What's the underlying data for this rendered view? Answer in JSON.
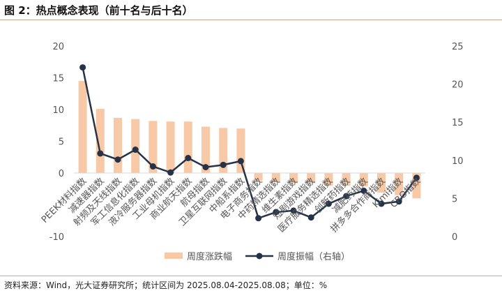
{
  "title": "图 2：热点概念表现（前十名与后十名）",
  "source": "资料来源：Wind，光大证券研究所；统计区间为 2025.08.04-2025.08.08；单位：%",
  "chart_data": {
    "type": "bar+line",
    "categories": [
      "PEEK材料指数",
      "减速器指数",
      "射频及天线指数",
      "军工信息化指数",
      "液冷服务器指数",
      "工业母机指数",
      "商业航天指数",
      "航母指数",
      "卫星互联网指数",
      "中船系指数",
      "电子商务指数",
      "中药精选指数",
      "维生素指数",
      "短剧游戏指数",
      "医疗服务精选指数",
      "创新药指数",
      "减肥药指数",
      "拼多多合作商指数",
      "Kimi指数",
      "CRO指数"
    ],
    "series": [
      {
        "name": "周度涨跌幅",
        "type": "bar",
        "axis": "left",
        "color": "#f8c9a6",
        "values": [
          14.5,
          10.1,
          8.7,
          8.5,
          8.2,
          8.1,
          8.1,
          7.3,
          7.1,
          7.0,
          -1.2,
          -1.4,
          -1.6,
          -1.6,
          -2.0,
          -2.0,
          -2.1,
          -3.1,
          -3.5,
          -4.0
        ]
      },
      {
        "name": "周度振幅（右轴）",
        "type": "line",
        "axis": "right",
        "color": "#253247",
        "values": [
          22.2,
          10.9,
          10.1,
          11.4,
          9.2,
          8.4,
          10.3,
          9.1,
          9.4,
          9.9,
          2.4,
          3.2,
          3.4,
          2.5,
          4.3,
          5.3,
          6.0,
          4.3,
          4.6,
          7.7
        ]
      }
    ],
    "left_axis": {
      "ylim": [
        -10,
        20
      ],
      "ticks": [
        -10,
        0,
        5,
        10,
        15,
        20
      ]
    },
    "right_axis": {
      "ylim": [
        0,
        25
      ],
      "ticks": [
        0,
        5,
        10,
        15,
        20,
        25
      ]
    },
    "legend": "bottom",
    "grid": false
  }
}
